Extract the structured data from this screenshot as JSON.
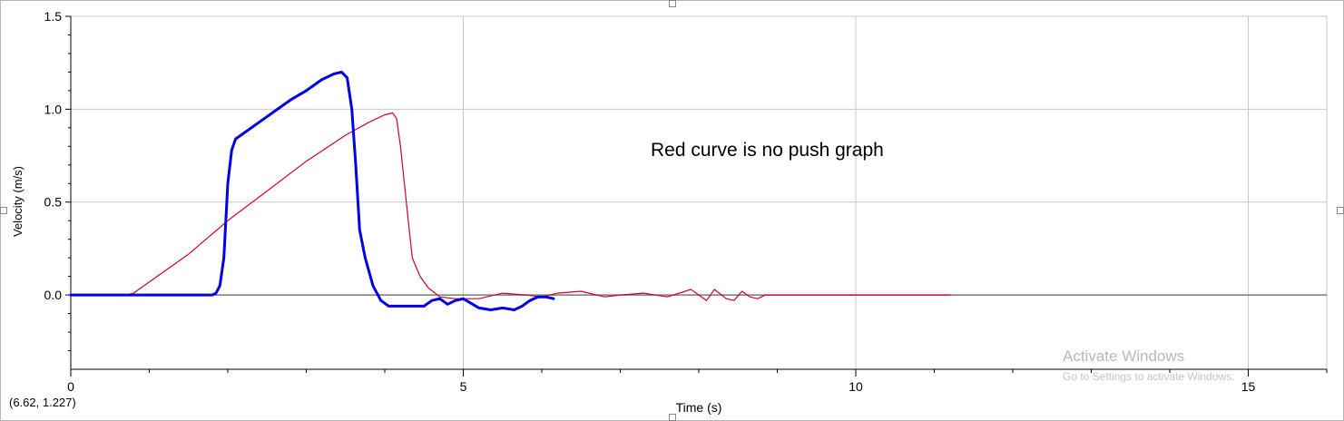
{
  "chart_data": {
    "type": "line",
    "xlabel": "Time (s)",
    "ylabel": "Velocity (m/s)",
    "xlim": [
      0,
      16
    ],
    "ylim": [
      -0.4,
      1.5
    ],
    "xticks": [
      0,
      5,
      10,
      15
    ],
    "xtick_labels": [
      "0",
      "5",
      "10",
      "15"
    ],
    "yticks": [
      0.0,
      0.5,
      1.0,
      1.5
    ],
    "ytick_labels": [
      "0.0",
      "0.5",
      "1.0",
      "1.5"
    ],
    "grid": true,
    "annotation": "Red curve is no push graph",
    "series": [
      {
        "color": "#0000e6",
        "x": [
          0,
          1.8,
          1.85,
          1.9,
          1.95,
          2.0,
          2.05,
          2.1,
          2.2,
          2.4,
          2.6,
          2.8,
          3.0,
          3.2,
          3.35,
          3.45,
          3.52,
          3.58,
          3.63,
          3.68,
          3.75,
          3.85,
          3.95,
          4.05,
          4.2,
          4.5,
          4.6,
          4.7,
          4.8,
          4.9,
          5.0,
          5.2,
          5.35,
          5.5,
          5.65,
          5.75,
          5.85,
          5.95,
          6.05,
          6.15
        ],
        "values": [
          0,
          0,
          0.01,
          0.05,
          0.2,
          0.6,
          0.78,
          0.84,
          0.87,
          0.93,
          0.99,
          1.05,
          1.1,
          1.16,
          1.19,
          1.2,
          1.17,
          1.0,
          0.7,
          0.35,
          0.2,
          0.05,
          -0.03,
          -0.06,
          -0.06,
          -0.06,
          -0.03,
          -0.02,
          -0.05,
          -0.03,
          -0.02,
          -0.07,
          -0.08,
          -0.07,
          -0.08,
          -0.06,
          -0.03,
          -0.01,
          -0.01,
          -0.02
        ]
      },
      {
        "color": "#d0002a",
        "x": [
          0,
          0.7,
          0.8,
          1.0,
          1.5,
          2.0,
          2.5,
          3.0,
          3.5,
          3.8,
          4.0,
          4.1,
          4.15,
          4.2,
          4.25,
          4.3,
          4.35,
          4.45,
          4.55,
          4.7,
          4.9,
          5.2,
          5.5,
          5.8,
          6.0,
          6.2,
          6.5,
          6.8,
          7.0,
          7.3,
          7.6,
          7.9,
          8.0,
          8.1,
          8.2,
          8.35,
          8.45,
          8.55,
          8.65,
          8.75,
          8.85,
          9.0,
          10.0,
          11.2
        ],
        "values": [
          0,
          0,
          0.01,
          0.07,
          0.22,
          0.4,
          0.56,
          0.72,
          0.86,
          0.93,
          0.97,
          0.98,
          0.95,
          0.8,
          0.6,
          0.4,
          0.2,
          0.1,
          0.04,
          -0.01,
          -0.02,
          -0.02,
          0.01,
          0.0,
          -0.01,
          0.01,
          0.02,
          -0.01,
          0.0,
          0.01,
          -0.01,
          0.03,
          0.0,
          -0.03,
          0.03,
          -0.02,
          -0.03,
          0.02,
          -0.01,
          -0.02,
          0.0,
          0.0,
          0.0,
          0.0
        ]
      }
    ]
  },
  "readout": "(6.62, 1.227)",
  "watermark": {
    "title": "Activate Windows",
    "subtitle": "Go to Settings to activate Windows."
  }
}
